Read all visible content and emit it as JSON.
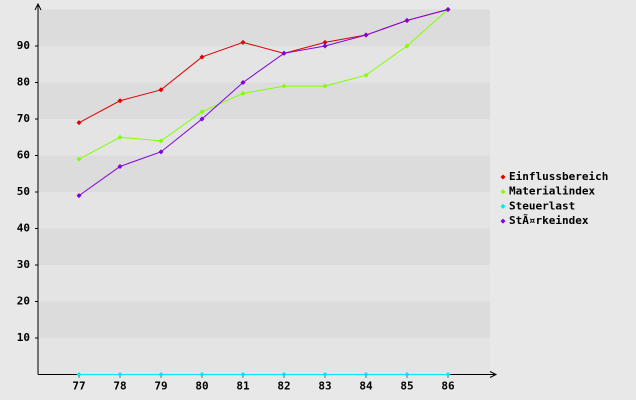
{
  "chart_data": {
    "type": "line",
    "categories": [
      "77",
      "78",
      "79",
      "80",
      "81",
      "82",
      "83",
      "84",
      "85",
      "86"
    ],
    "series": [
      {
        "name": "Einflussbereich",
        "color": "#e00000",
        "values": [
          69,
          75,
          78,
          87,
          91,
          88,
          91,
          93,
          97,
          100
        ]
      },
      {
        "name": "Materialindex",
        "color": "#80ff00",
        "values": [
          59,
          65,
          64,
          72,
          77,
          79,
          79,
          82,
          90,
          100
        ]
      },
      {
        "name": "Steuerlast",
        "color": "#00e8f0",
        "values": [
          0,
          0,
          0,
          0,
          0,
          0,
          0,
          0,
          0,
          0
        ]
      },
      {
        "name": "StÃ¤rkeindex",
        "color": "#8000e0",
        "values": [
          49,
          57,
          61,
          70,
          80,
          88,
          90,
          93,
          97,
          100
        ]
      }
    ],
    "ylim": [
      0,
      100
    ],
    "yticks": [
      10,
      20,
      30,
      40,
      50,
      60,
      70,
      80,
      90
    ],
    "grid": true,
    "legend": "right"
  }
}
